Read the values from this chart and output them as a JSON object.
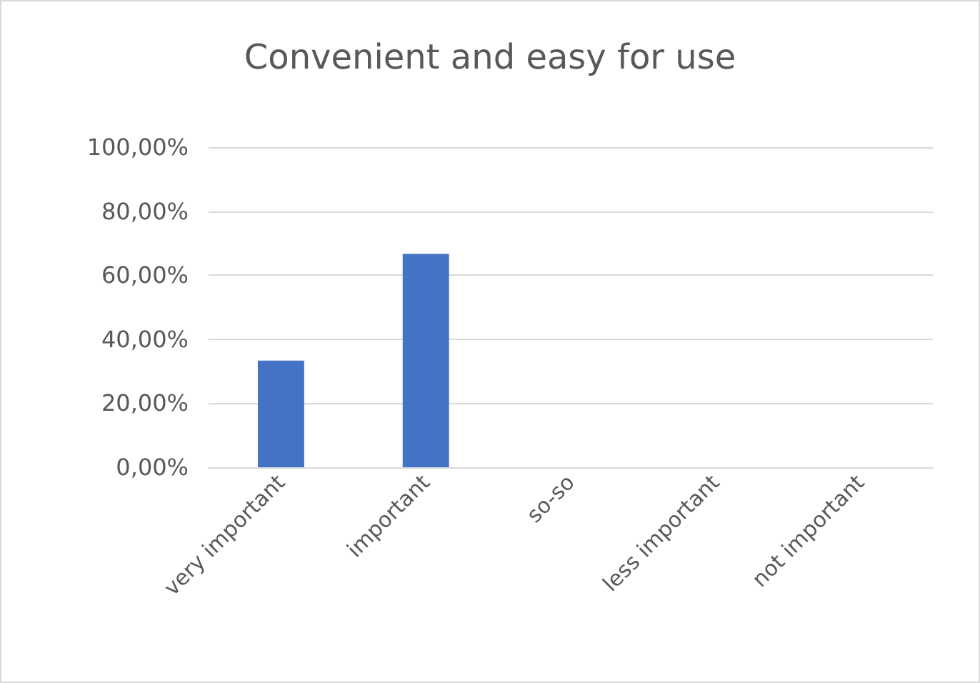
{
  "chart_data": {
    "type": "bar",
    "title": "Convenient and easy for use",
    "categories": [
      "very important",
      "important",
      "so-so",
      "less important",
      "not important"
    ],
    "values": [
      33.3,
      66.7,
      0,
      0,
      0
    ],
    "color": "#4472c4",
    "ylim": [
      0,
      100
    ],
    "yticks": [
      {
        "value": 0,
        "label": "0,00%"
      },
      {
        "value": 20,
        "label": "20,00%"
      },
      {
        "value": 40,
        "label": "40,00%"
      },
      {
        "value": 60,
        "label": "60,00%"
      },
      {
        "value": 80,
        "label": "80,00%"
      },
      {
        "value": 100,
        "label": "100,00%"
      }
    ],
    "grid": "y"
  }
}
